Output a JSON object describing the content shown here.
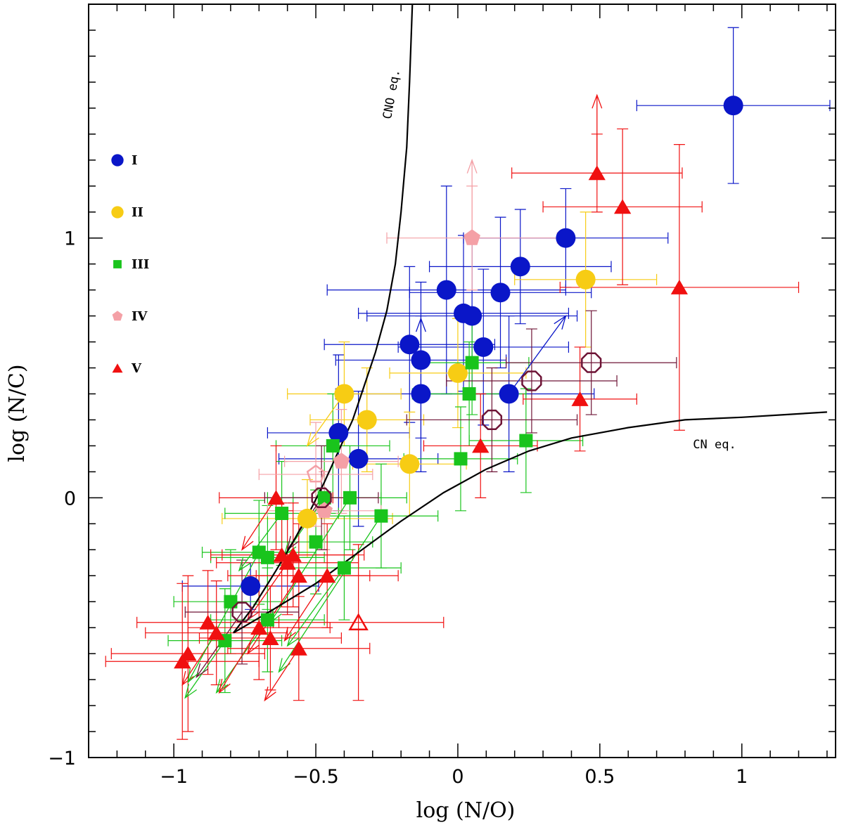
{
  "chart_data": {
    "type": "scatter",
    "title": "",
    "xlabel": "log (N/O)",
    "ylabel": "log (N/C)",
    "xlim": [
      -1.3,
      1.33
    ],
    "ylim": [
      -1.0,
      1.9
    ],
    "x_ticks": [
      -1,
      -0.5,
      0,
      0.5,
      1
    ],
    "x_tick_labels": [
      "−1",
      "−0.5",
      "0",
      "0.5",
      "1"
    ],
    "y_ticks": [
      -1,
      0,
      1
    ],
    "y_tick_labels": [
      "−1",
      "0",
      "1"
    ],
    "grid": false,
    "legend_position": "left",
    "colors": {
      "I": "#0a16c8",
      "II": "#f7cc14",
      "III": "#19c41c",
      "IV": "#f4a0a6",
      "V": "#f01010",
      "open": "#6e1436"
    },
    "curves": [
      {
        "name": "CNO eq.",
        "label": "CNO eq.",
        "points": [
          [
            -0.79,
            -0.52
          ],
          [
            -0.72,
            -0.42
          ],
          [
            -0.64,
            -0.28
          ],
          [
            -0.58,
            -0.17
          ],
          [
            -0.52,
            -0.05
          ],
          [
            -0.47,
            0.06
          ],
          [
            -0.42,
            0.18
          ],
          [
            -0.37,
            0.3
          ],
          [
            -0.33,
            0.43
          ],
          [
            -0.29,
            0.56
          ],
          [
            -0.25,
            0.72
          ],
          [
            -0.22,
            0.9
          ],
          [
            -0.2,
            1.1
          ],
          [
            -0.18,
            1.35
          ],
          [
            -0.17,
            1.6
          ],
          [
            -0.16,
            1.9
          ]
        ]
      },
      {
        "name": "CN eq.",
        "label": "CN eq.",
        "points": [
          [
            -0.79,
            -0.52
          ],
          [
            -0.65,
            -0.43
          ],
          [
            -0.5,
            -0.33
          ],
          [
            -0.35,
            -0.21
          ],
          [
            -0.2,
            -0.09
          ],
          [
            -0.05,
            0.02
          ],
          [
            0.1,
            0.11
          ],
          [
            0.25,
            0.18
          ],
          [
            0.4,
            0.23
          ],
          [
            0.6,
            0.27
          ],
          [
            0.8,
            0.3
          ],
          [
            1.0,
            0.31
          ],
          [
            1.15,
            0.32
          ],
          [
            1.3,
            0.33
          ]
        ]
      }
    ],
    "series": [
      {
        "name": "I",
        "label": "I",
        "marker": "circle",
        "filled": true,
        "points": [
          {
            "x": 0.97,
            "y": 1.51,
            "xerr": 0.34,
            "yerr": 0.3
          },
          {
            "x": 0.38,
            "y": 1.0,
            "xerr": 0.36,
            "yerr": 0.19
          },
          {
            "x": 0.22,
            "y": 0.89,
            "xerr": 0.32,
            "yerr": 0.22
          },
          {
            "x": -0.04,
            "y": 0.8,
            "xerr": 0.42,
            "yerr": 0.4
          },
          {
            "x": 0.15,
            "y": 0.79,
            "xerr": 0.32,
            "yerr": 0.29
          },
          {
            "x": 0.02,
            "y": 0.71,
            "xerr": 0.37,
            "yerr": 0.3
          },
          {
            "x": 0.05,
            "y": 0.7,
            "xerr": 0.37,
            "yerr": 0.3
          },
          {
            "x": -0.17,
            "y": 0.59,
            "xerr": 0.3,
            "yerr": 0.3
          },
          {
            "x": 0.09,
            "y": 0.58,
            "xerr": 0.3,
            "yerr": 0.3
          },
          {
            "x": -0.13,
            "y": 0.53,
            "xerr": 0.3,
            "yerr": 0.3
          },
          {
            "x": -0.13,
            "y": 0.4,
            "xerr": 0.3,
            "yerr": 0.3
          },
          {
            "x": 0.18,
            "y": 0.4,
            "xerr": 0.3,
            "yerr": 0.3
          },
          {
            "x": -0.42,
            "y": 0.25,
            "xerr": 0.25,
            "yerr": 0.3
          },
          {
            "x": -0.35,
            "y": 0.15,
            "xerr": 0.28,
            "yerr": 0.26
          },
          {
            "x": -0.73,
            "y": -0.34,
            "xerr": 0.24,
            "yerr": 0.09
          }
        ]
      },
      {
        "name": "II",
        "label": "II",
        "marker": "circle",
        "filled": true,
        "points": [
          {
            "x": 0.45,
            "y": 0.84,
            "xerr": 0.25,
            "yerr": 0.26
          },
          {
            "x": 0.0,
            "y": 0.48,
            "xerr": 0.24,
            "yerr": 0.21
          },
          {
            "x": -0.4,
            "y": 0.4,
            "xerr": 0.2,
            "yerr": 0.2
          },
          {
            "x": -0.32,
            "y": 0.3,
            "xerr": 0.2,
            "yerr": 0.2
          },
          {
            "x": -0.17,
            "y": 0.13,
            "xerr": 0.2,
            "yerr": 0.2
          },
          {
            "x": -0.53,
            "y": -0.08,
            "xerr": 0.3,
            "yerr": 0.15
          }
        ]
      },
      {
        "name": "III",
        "label": "III",
        "marker": "square",
        "filled": true,
        "points": [
          {
            "x": 0.05,
            "y": 0.52,
            "xerr": 0.2,
            "yerr": 0.2
          },
          {
            "x": 0.04,
            "y": 0.4,
            "xerr": 0.2,
            "yerr": 0.2
          },
          {
            "x": 0.24,
            "y": 0.22,
            "xerr": 0.2,
            "yerr": 0.2
          },
          {
            "x": -0.44,
            "y": 0.2,
            "xerr": 0.2,
            "yerr": 0.2
          },
          {
            "x": 0.01,
            "y": 0.15,
            "xerr": 0.2,
            "yerr": 0.2
          },
          {
            "x": -0.47,
            "y": 0.0,
            "xerr": 0.2,
            "yerr": 0.2
          },
          {
            "x": -0.38,
            "y": 0.0,
            "xerr": 0.2,
            "yerr": 0.2
          },
          {
            "x": -0.62,
            "y": -0.06,
            "xerr": 0.2,
            "yerr": 0.2
          },
          {
            "x": -0.27,
            "y": -0.07,
            "xerr": 0.2,
            "yerr": 0.2
          },
          {
            "x": -0.5,
            "y": -0.17,
            "xerr": 0.2,
            "yerr": 0.2
          },
          {
            "x": -0.7,
            "y": -0.21,
            "xerr": 0.2,
            "yerr": 0.2
          },
          {
            "x": -0.67,
            "y": -0.23,
            "xerr": 0.2,
            "yerr": 0.2
          },
          {
            "x": -0.4,
            "y": -0.27,
            "xerr": 0.2,
            "yerr": 0.2
          },
          {
            "x": -0.8,
            "y": -0.4,
            "xerr": 0.2,
            "yerr": 0.2
          },
          {
            "x": -0.67,
            "y": -0.47,
            "xerr": 0.2,
            "yerr": 0.2
          },
          {
            "x": -0.82,
            "y": -0.55,
            "xerr": 0.2,
            "yerr": 0.2
          }
        ]
      },
      {
        "name": "IV",
        "label": "IV",
        "marker": "pentagon",
        "filled": true,
        "points": [
          {
            "x": 0.05,
            "y": 1.0,
            "xerr": 0.3,
            "yerr": 0.2
          },
          {
            "x": -0.41,
            "y": 0.14,
            "xerr": 0.2,
            "yerr": 0.2
          },
          {
            "x": -0.47,
            "y": -0.05,
            "xerr": 0.2,
            "yerr": 0.15
          }
        ]
      },
      {
        "name": "V",
        "label": "V",
        "marker": "triangle",
        "filled": true,
        "points": [
          {
            "x": 0.49,
            "y": 1.25,
            "xerr": 0.3,
            "yerr": 0.15
          },
          {
            "x": 0.58,
            "y": 1.12,
            "xerr": 0.28,
            "yerr": 0.3
          },
          {
            "x": 0.78,
            "y": 0.81,
            "xerr": 0.42,
            "yerr": 0.55
          },
          {
            "x": 0.43,
            "y": 0.38,
            "xerr": 0.2,
            "yerr": 0.2
          },
          {
            "x": 0.08,
            "y": 0.2,
            "xerr": 0.2,
            "yerr": 0.2
          },
          {
            "x": -0.64,
            "y": 0.0,
            "xerr": 0.2,
            "yerr": 0.2
          },
          {
            "x": -0.62,
            "y": -0.22,
            "xerr": 0.25,
            "yerr": 0.2
          },
          {
            "x": -0.58,
            "y": -0.22,
            "xerr": 0.25,
            "yerr": 0.2
          },
          {
            "x": -0.6,
            "y": -0.25,
            "xerr": 0.25,
            "yerr": 0.2
          },
          {
            "x": -0.56,
            "y": -0.3,
            "xerr": 0.25,
            "yerr": 0.2
          },
          {
            "x": -0.46,
            "y": -0.3,
            "xerr": 0.25,
            "yerr": 0.2
          },
          {
            "x": -0.88,
            "y": -0.48,
            "xerr": 0.25,
            "yerr": 0.2
          },
          {
            "x": -0.85,
            "y": -0.52,
            "xerr": 0.25,
            "yerr": 0.2
          },
          {
            "x": -0.7,
            "y": -0.5,
            "xerr": 0.25,
            "yerr": 0.2
          },
          {
            "x": -0.66,
            "y": -0.54,
            "xerr": 0.25,
            "yerr": 0.2
          },
          {
            "x": -0.56,
            "y": -0.58,
            "xerr": 0.25,
            "yerr": 0.2
          },
          {
            "x": -0.95,
            "y": -0.6,
            "xerr": 0.27,
            "yerr": 0.3
          },
          {
            "x": -0.97,
            "y": -0.63,
            "xerr": 0.27,
            "yerr": 0.3
          }
        ]
      },
      {
        "name": "V-open",
        "label": "",
        "marker": "triangle",
        "filled": false,
        "points": [
          {
            "x": -0.35,
            "y": -0.48,
            "xerr": 0.3,
            "yerr": 0.3
          }
        ]
      },
      {
        "name": "IV-open",
        "label": "",
        "marker": "pentagon",
        "filled": false,
        "points": [
          {
            "x": -0.5,
            "y": 0.09,
            "xerr": 0.2,
            "yerr": 0.2
          }
        ]
      },
      {
        "name": "open",
        "label": "",
        "marker": "octagon",
        "filled": false,
        "points": [
          {
            "x": 0.47,
            "y": 0.52,
            "xerr": 0.3,
            "yerr": 0.2
          },
          {
            "x": 0.26,
            "y": 0.45,
            "xerr": 0.3,
            "yerr": 0.2
          },
          {
            "x": 0.12,
            "y": 0.3,
            "xerr": 0.3,
            "yerr": 0.2
          },
          {
            "x": -0.48,
            "y": 0.0,
            "xerr": 0.2,
            "yerr": 0.2
          },
          {
            "x": -0.76,
            "y": -0.44,
            "xerr": 0.2,
            "yerr": 0.2
          }
        ]
      }
    ],
    "arrows": [
      {
        "color_key": "V",
        "x": 0.49,
        "y": 1.25,
        "dx": 0.0,
        "dy": 0.3
      },
      {
        "color_key": "IV",
        "x": 0.05,
        "y": 1.0,
        "dx": 0.0,
        "dy": 0.3
      },
      {
        "color_key": "I",
        "x": -0.13,
        "y": 0.53,
        "dx": 0.0,
        "dy": 0.16
      },
      {
        "color_key": "I",
        "x": 0.18,
        "y": 0.4,
        "dx": 0.2,
        "dy": 0.3
      },
      {
        "color_key": "II",
        "x": -0.4,
        "y": 0.4,
        "dx": -0.13,
        "dy": -0.2
      },
      {
        "color_key": "V",
        "x": -0.64,
        "y": 0.0,
        "dx": -0.12,
        "dy": -0.2
      },
      {
        "color_key": "III",
        "x": -0.62,
        "y": -0.06,
        "dx": -0.15,
        "dy": -0.22
      },
      {
        "color_key": "V",
        "x": -0.6,
        "y": -0.25,
        "dx": -0.14,
        "dy": -0.22
      },
      {
        "color_key": "III",
        "x": -0.47,
        "y": 0.0,
        "dx": -0.14,
        "dy": -0.22
      },
      {
        "color_key": "open",
        "x": -0.48,
        "y": 0.0,
        "dx": -0.12,
        "dy": -0.2
      },
      {
        "color_key": "III",
        "x": -0.67,
        "y": -0.47,
        "dx": -0.18,
        "dy": -0.28
      },
      {
        "color_key": "III",
        "x": -0.82,
        "y": -0.55,
        "dx": -0.14,
        "dy": -0.22
      },
      {
        "color_key": "V",
        "x": -0.85,
        "y": -0.52,
        "dx": -0.12,
        "dy": -0.2
      },
      {
        "color_key": "open",
        "x": -0.76,
        "y": -0.44,
        "dx": -0.16,
        "dy": -0.25
      },
      {
        "color_key": "V",
        "x": -0.7,
        "y": -0.5,
        "dx": -0.14,
        "dy": -0.25
      },
      {
        "color_key": "III",
        "x": -0.7,
        "y": -0.21,
        "dx": -0.25,
        "dy": -0.5
      },
      {
        "color_key": "III",
        "x": -0.4,
        "y": -0.27,
        "dx": -0.2,
        "dy": -0.3
      },
      {
        "color_key": "V",
        "x": -0.56,
        "y": -0.3,
        "dx": -0.18,
        "dy": -0.3
      },
      {
        "color_key": "III",
        "x": -0.38,
        "y": 0.0,
        "dx": -0.28,
        "dy": -0.48
      },
      {
        "color_key": "V",
        "x": -0.46,
        "y": -0.3,
        "dx": -0.15,
        "dy": -0.25
      },
      {
        "color_key": "III",
        "x": -0.27,
        "y": -0.07,
        "dx": -0.36,
        "dy": -0.6
      },
      {
        "color_key": "V",
        "x": -0.56,
        "y": -0.58,
        "dx": -0.12,
        "dy": -0.2
      }
    ],
    "legend": [
      {
        "series": "I",
        "label": "I",
        "marker": "circle"
      },
      {
        "series": "II",
        "label": "II",
        "marker": "circle"
      },
      {
        "series": "III",
        "label": "III",
        "marker": "square"
      },
      {
        "series": "IV",
        "label": "IV",
        "marker": "pentagon"
      },
      {
        "series": "V",
        "label": "V",
        "marker": "triangle"
      }
    ]
  }
}
